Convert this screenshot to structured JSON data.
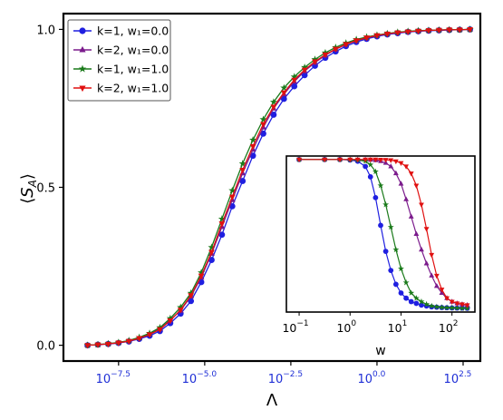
{
  "chart_data": [
    {
      "type": "line",
      "title": "",
      "xlabel": "Λ",
      "ylabel": "⟨S_A⟩",
      "x_scale": "log10",
      "xlim_log10": [
        -9.1,
        3.0
      ],
      "ylim": [
        -0.05,
        1.05
      ],
      "x_tick_values": [
        -7.5,
        -5.0,
        -2.5,
        0.0,
        2.5
      ],
      "x_tick_labels": [
        "10^-7.5",
        "10^-5.0",
        "10^-2.5",
        "10^0.0",
        "10^2.5"
      ],
      "x_tick_color": "#1f2fd6",
      "y_ticks": [
        0.0,
        0.5,
        1.0
      ],
      "y_tick_labels": [
        "0.0",
        "0.5",
        "1.0"
      ],
      "grid": false,
      "legend_position": "top-left",
      "x_log10": [
        -8.4,
        -8.1,
        -7.8,
        -7.5,
        -7.2,
        -6.9,
        -6.6,
        -6.3,
        -6.0,
        -5.7,
        -5.4,
        -5.1,
        -4.8,
        -4.5,
        -4.2,
        -3.9,
        -3.6,
        -3.3,
        -3.0,
        -2.7,
        -2.4,
        -2.1,
        -1.8,
        -1.5,
        -1.2,
        -0.9,
        -0.6,
        -0.3,
        0.0,
        0.3,
        0.6,
        0.9,
        1.2,
        1.5,
        1.8,
        2.1,
        2.4,
        2.7
      ],
      "series": [
        {
          "name": "k=1, w₁=0.0",
          "color": "#1f1fe0",
          "marker": "circle",
          "values": [
            0.0,
            0.002,
            0.004,
            0.007,
            0.012,
            0.02,
            0.03,
            0.045,
            0.07,
            0.1,
            0.14,
            0.2,
            0.27,
            0.35,
            0.44,
            0.52,
            0.6,
            0.67,
            0.73,
            0.78,
            0.82,
            0.855,
            0.885,
            0.91,
            0.93,
            0.947,
            0.96,
            0.97,
            0.978,
            0.984,
            0.988,
            0.992,
            0.994,
            0.996,
            0.997,
            0.998,
            0.999,
            1.0
          ]
        },
        {
          "name": "k=2, w₁=0.0",
          "color": "#7b1b8c",
          "marker": "triangle-up",
          "values": [
            0.0,
            0.002,
            0.005,
            0.008,
            0.014,
            0.023,
            0.035,
            0.052,
            0.08,
            0.11,
            0.155,
            0.215,
            0.29,
            0.375,
            0.46,
            0.545,
            0.62,
            0.69,
            0.75,
            0.795,
            0.835,
            0.868,
            0.895,
            0.918,
            0.937,
            0.952,
            0.964,
            0.973,
            0.98,
            0.986,
            0.99,
            0.993,
            0.995,
            0.997,
            0.998,
            0.999,
            0.999,
            1.0
          ]
        },
        {
          "name": "k=1, w₁=1.0",
          "color": "#1a7a1a",
          "marker": "star",
          "values": [
            0.0,
            0.002,
            0.005,
            0.009,
            0.015,
            0.025,
            0.038,
            0.056,
            0.085,
            0.12,
            0.165,
            0.23,
            0.31,
            0.4,
            0.49,
            0.575,
            0.65,
            0.715,
            0.77,
            0.815,
            0.85,
            0.88,
            0.905,
            0.926,
            0.943,
            0.957,
            0.968,
            0.976,
            0.982,
            0.987,
            0.991,
            0.994,
            0.996,
            0.997,
            0.998,
            0.999,
            0.999,
            1.0
          ]
        },
        {
          "name": "k=2, w₁=1.0",
          "color": "#e01010",
          "marker": "triangle-down",
          "values": [
            0.0,
            0.002,
            0.004,
            0.008,
            0.013,
            0.022,
            0.034,
            0.05,
            0.078,
            0.112,
            0.158,
            0.22,
            0.295,
            0.385,
            0.47,
            0.555,
            0.63,
            0.7,
            0.755,
            0.8,
            0.84,
            0.872,
            0.898,
            0.92,
            0.938,
            0.953,
            0.965,
            0.974,
            0.981,
            0.986,
            0.99,
            0.993,
            0.995,
            0.997,
            0.998,
            0.999,
            0.999,
            1.0
          ]
        }
      ]
    },
    {
      "type": "line",
      "title": "",
      "xlabel": "w",
      "ylabel": "",
      "x_scale": "log10",
      "xlim_log10": [
        -1.25,
        2.45
      ],
      "ylim": [
        0.12,
        1.02
      ],
      "x_tick_values": [
        -1,
        0,
        1,
        2
      ],
      "x_tick_labels": [
        "10^-1",
        "10^0",
        "10^1",
        "10^2"
      ],
      "grid": false,
      "x_log10": [
        -1.0,
        -0.5,
        -0.2,
        0.0,
        0.15,
        0.3,
        0.4,
        0.5,
        0.6,
        0.7,
        0.8,
        0.9,
        1.0,
        1.1,
        1.2,
        1.3,
        1.4,
        1.5,
        1.6,
        1.7,
        1.8,
        1.9,
        2.0,
        2.1,
        2.2,
        2.3
      ],
      "series": [
        {
          "name": "k=1, w₁=0.0",
          "color": "#1f1fe0",
          "marker": "circle",
          "values": [
            1.0,
            1.0,
            1.0,
            0.997,
            0.99,
            0.96,
            0.9,
            0.78,
            0.62,
            0.47,
            0.36,
            0.28,
            0.23,
            0.2,
            0.18,
            0.17,
            0.16,
            0.155,
            0.15,
            0.148,
            0.146,
            0.145,
            0.144,
            0.143,
            0.143,
            0.142
          ]
        },
        {
          "name": "k=2, w₁=0.0",
          "color": "#7b1b8c",
          "marker": "triangle-up",
          "values": [
            1.0,
            1.0,
            1.0,
            1.0,
            1.0,
            0.999,
            0.998,
            0.995,
            0.99,
            0.98,
            0.96,
            0.92,
            0.86,
            0.77,
            0.67,
            0.57,
            0.48,
            0.4,
            0.33,
            0.27,
            0.23,
            0.2,
            0.18,
            0.17,
            0.165,
            0.16
          ]
        },
        {
          "name": "k=1, w₁=1.0",
          "color": "#1a7a1a",
          "marker": "star",
          "values": [
            1.0,
            1.0,
            1.0,
            0.999,
            0.997,
            0.99,
            0.97,
            0.93,
            0.85,
            0.74,
            0.61,
            0.48,
            0.37,
            0.29,
            0.23,
            0.2,
            0.18,
            0.165,
            0.155,
            0.15,
            0.147,
            0.145,
            0.144,
            0.143,
            0.142,
            0.142
          ]
        },
        {
          "name": "k=2, w₁=1.0",
          "color": "#e01010",
          "marker": "triangle-down",
          "values": [
            1.0,
            1.0,
            1.0,
            1.0,
            1.0,
            1.0,
            1.0,
            1.0,
            0.999,
            0.998,
            0.996,
            0.99,
            0.98,
            0.96,
            0.92,
            0.85,
            0.74,
            0.6,
            0.45,
            0.33,
            0.25,
            0.2,
            0.18,
            0.17,
            0.165,
            0.16
          ]
        }
      ]
    }
  ]
}
